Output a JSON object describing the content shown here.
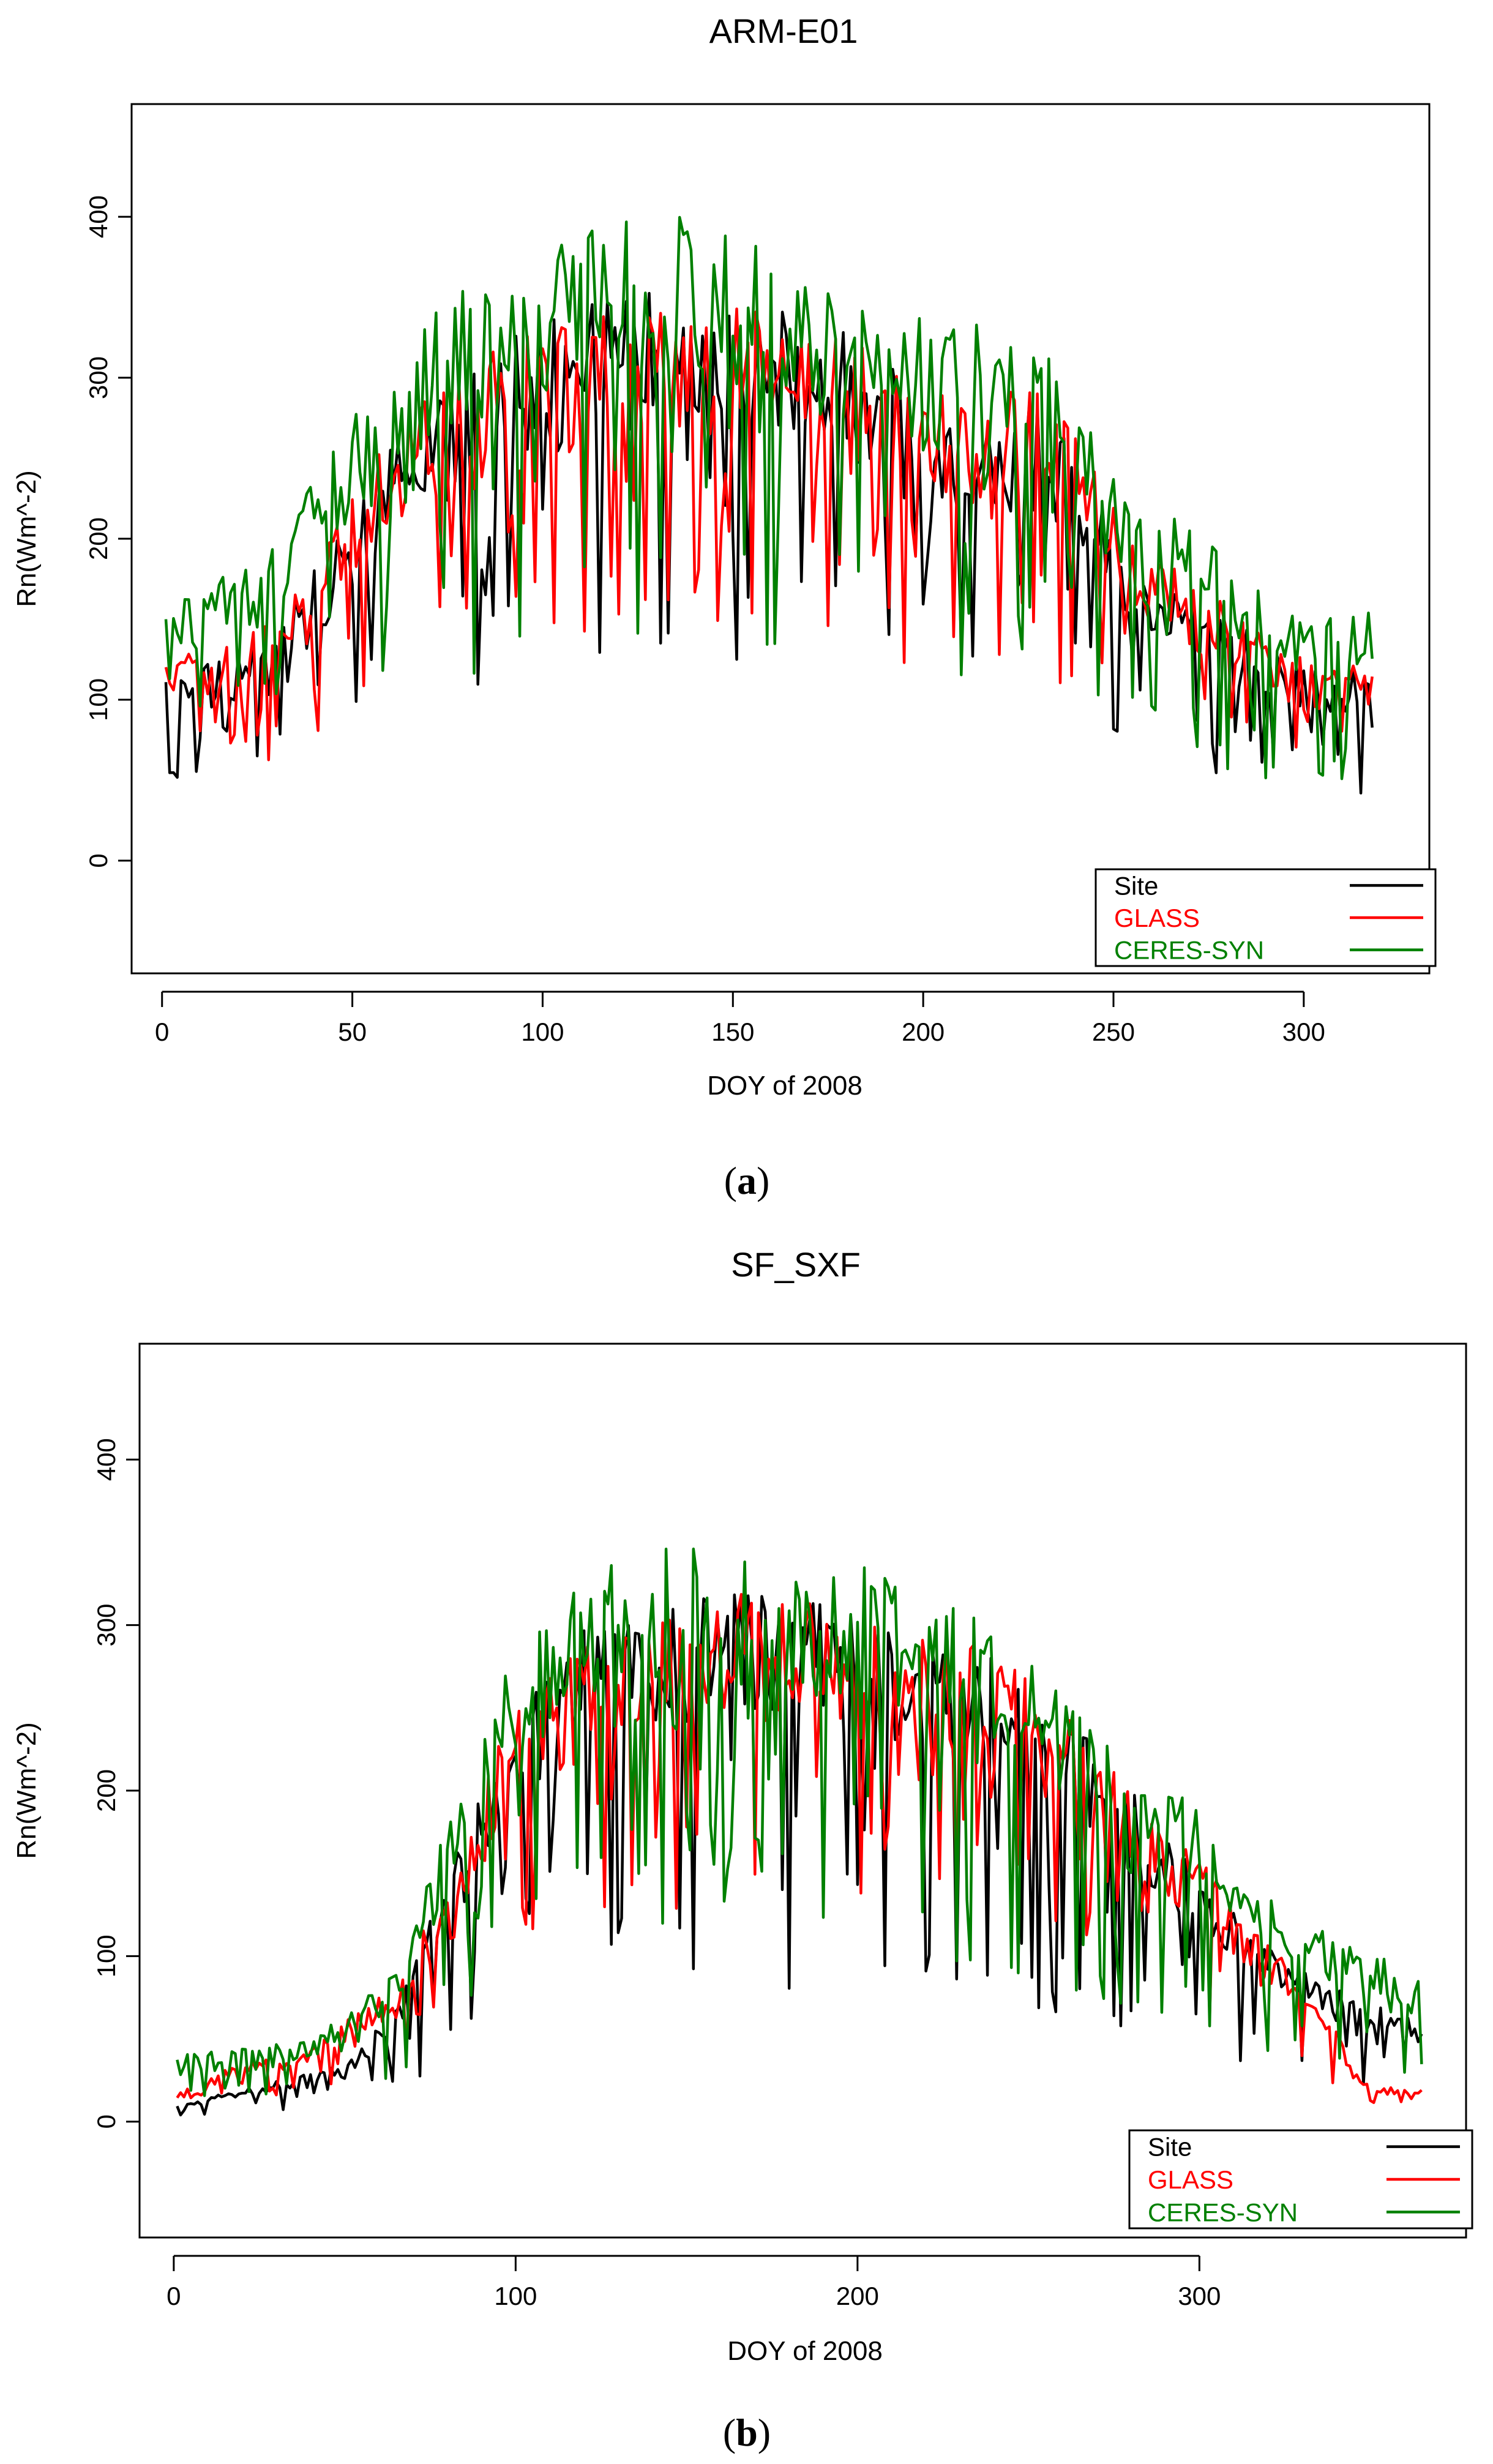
{
  "chart_data": [
    {
      "type": "line",
      "title": "ARM-E01",
      "caption_letter": "a",
      "xlabel": "DOY of 2008",
      "ylabel": "Rn(Wm^-2)",
      "xlim": [
        -8,
        333
      ],
      "ylim": [
        -70,
        470
      ],
      "xticks": [
        0,
        50,
        100,
        150,
        200,
        250,
        300
      ],
      "yticks": [
        0,
        100,
        200,
        300,
        400
      ],
      "legend": "bottom-right",
      "series": [
        {
          "name": "Site",
          "color": "#000000",
          "seed": 11,
          "x": [
            1,
            15,
            30,
            45,
            60,
            75,
            90,
            105,
            120,
            135,
            150,
            165,
            180,
            195,
            210,
            225,
            240,
            255,
            270,
            285,
            300,
            318
          ],
          "base": [
            118,
            125,
            145,
            200,
            265,
            295,
            325,
            340,
            355,
            360,
            355,
            345,
            330,
            300,
            280,
            300,
            260,
            200,
            165,
            145,
            120,
            120
          ],
          "amp": 0.65
        },
        {
          "name": "GLASS",
          "color": "#ff0000",
          "seed": 23,
          "x": [
            1,
            15,
            30,
            45,
            60,
            75,
            90,
            105,
            120,
            135,
            150,
            165,
            180,
            195,
            210,
            225,
            240,
            255,
            270,
            285,
            300,
            318
          ],
          "base": [
            128,
            135,
            150,
            205,
            270,
            300,
            328,
            335,
            340,
            345,
            345,
            345,
            335,
            305,
            285,
            305,
            265,
            205,
            175,
            150,
            125,
            125
          ],
          "amp": 0.6
        },
        {
          "name": "CERES-SYN",
          "color": "#008000",
          "seed": 37,
          "x": [
            1,
            15,
            30,
            45,
            60,
            75,
            90,
            105,
            120,
            135,
            150,
            165,
            180,
            195,
            210,
            225,
            240,
            255,
            270,
            285,
            300,
            318
          ],
          "base": [
            160,
            175,
            200,
            260,
            310,
            350,
            370,
            390,
            405,
            405,
            395,
            375,
            360,
            340,
            330,
            350,
            280,
            230,
            210,
            180,
            150,
            160
          ],
          "amp": 0.7
        }
      ]
    },
    {
      "type": "line",
      "title": "SF_SXF",
      "caption_letter": "b",
      "xlabel": "DOY of 2008",
      "ylabel": "Rn(Wm^-2)",
      "xlim": [
        -10,
        378
      ],
      "ylim": [
        -70,
        470
      ],
      "xticks": [
        0,
        100,
        200,
        300
      ],
      "yticks": [
        0,
        100,
        200,
        300,
        400
      ],
      "legend": "bottom-right",
      "series": [
        {
          "name": "Site",
          "color": "#000000",
          "seed": 41,
          "x": [
            1,
            20,
            40,
            55,
            65,
            80,
            100,
            120,
            140,
            160,
            180,
            200,
            220,
            240,
            260,
            280,
            300,
            320,
            340,
            365
          ],
          "base": [
            10,
            20,
            30,
            45,
            70,
            150,
            250,
            300,
            310,
            320,
            320,
            310,
            300,
            280,
            250,
            200,
            150,
            110,
            80,
            60
          ],
          "amp": 0.75
        },
        {
          "name": "GLASS",
          "color": "#ff0000",
          "seed": 53,
          "x": [
            1,
            20,
            40,
            55,
            65,
            80,
            100,
            120,
            140,
            160,
            180,
            200,
            220,
            240,
            260,
            280,
            300,
            320,
            340,
            350,
            365
          ],
          "base": [
            20,
            35,
            45,
            70,
            80,
            160,
            250,
            290,
            300,
            320,
            320,
            310,
            300,
            285,
            250,
            200,
            160,
            110,
            55,
            20,
            22
          ],
          "amp": 0.6
        },
        {
          "name": "CERES-SYN",
          "color": "#008000",
          "seed": 67,
          "x": [
            1,
            20,
            40,
            55,
            65,
            80,
            100,
            120,
            140,
            160,
            180,
            200,
            220,
            240,
            260,
            280,
            300,
            320,
            340,
            365
          ],
          "base": [
            40,
            45,
            50,
            75,
            90,
            180,
            290,
            340,
            350,
            345,
            330,
            340,
            320,
            300,
            260,
            220,
            190,
            140,
            110,
            90
          ],
          "amp": 0.7
        }
      ]
    }
  ]
}
